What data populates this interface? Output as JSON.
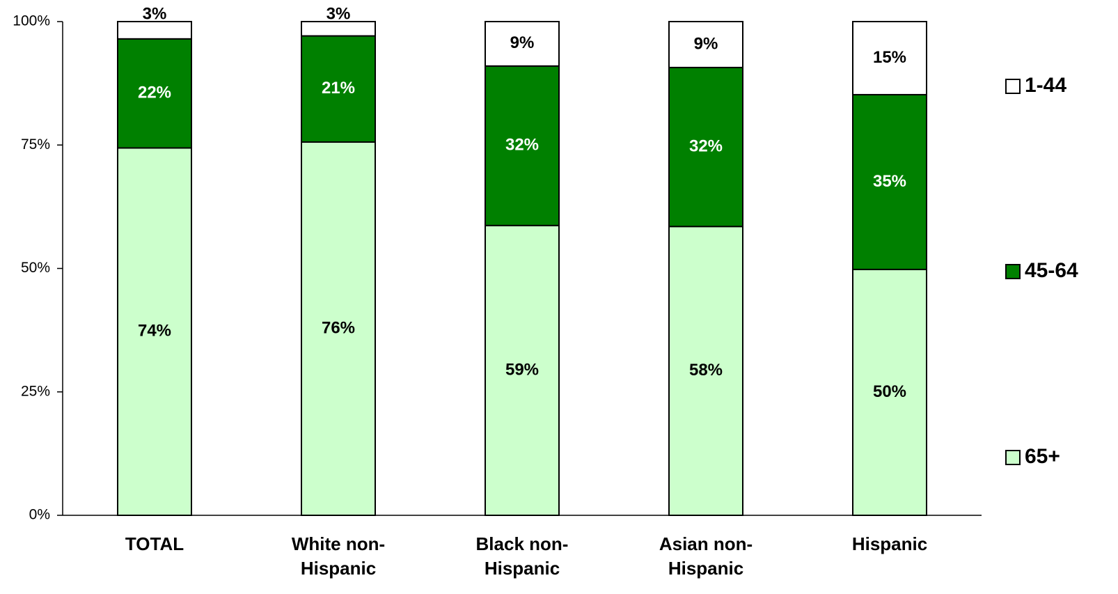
{
  "chart_data": {
    "type": "bar",
    "stacked": true,
    "normalized": true,
    "title": "",
    "xlabel": "",
    "ylabel": "",
    "ylim": [
      0,
      100
    ],
    "yticks": [
      "0%",
      "25%",
      "50%",
      "75%",
      "100%"
    ],
    "ytick_values": [
      0,
      25,
      50,
      75,
      100
    ],
    "categories": [
      [
        "TOTAL"
      ],
      [
        "White non-",
        "Hispanic"
      ],
      [
        "Black non-",
        "Hispanic"
      ],
      [
        "Asian non-",
        "Hispanic"
      ],
      [
        "Hispanic"
      ]
    ],
    "series": [
      {
        "name": "65+",
        "color": "#ccffcc",
        "label_color": "#000000",
        "values": [
          74.4,
          75.6,
          58.7,
          58.5,
          49.8
        ],
        "labels": [
          "74%",
          "76%",
          "59%",
          "58%",
          "50%"
        ]
      },
      {
        "name": "45-64",
        "color": "#008000",
        "label_color": "#ffffff",
        "values": [
          22.1,
          21.5,
          32.3,
          32.2,
          35.4
        ],
        "labels": [
          "22%",
          "21%",
          "32%",
          "32%",
          "35%"
        ]
      },
      {
        "name": "1-44",
        "color": "#ffffff",
        "label_color": "#000000",
        "values": [
          3.5,
          2.9,
          9.0,
          9.3,
          14.8
        ],
        "labels": [
          "3%",
          "3%",
          "9%",
          "9%",
          "15%"
        ]
      }
    ],
    "legend": {
      "position": "right",
      "order": [
        "1-44",
        "45-64",
        "65+"
      ]
    },
    "grid": false
  }
}
